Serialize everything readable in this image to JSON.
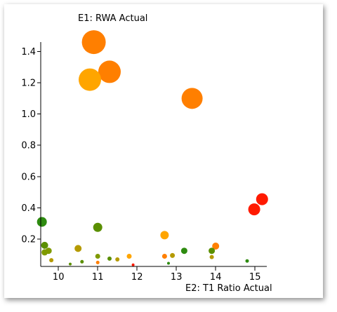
{
  "chart_data": {
    "type": "scatter",
    "title": "",
    "ylabel": "E1: RWA Actual",
    "xlabel": "E2: T1 Ratio Actual",
    "xlim": [
      9.55,
      15.3
    ],
    "ylim": [
      0.025,
      1.55
    ],
    "x_ticks": [
      10,
      11,
      12,
      13,
      14,
      15
    ],
    "y_ticks": [
      0.2,
      0.4,
      0.6,
      0.8,
      1.0,
      1.2,
      1.4
    ],
    "y_tick_labels": [
      "0.2",
      "0.4",
      "0.6",
      "0.8",
      "1.0",
      "1.2",
      "1.4"
    ],
    "grid": false,
    "legend": "none",
    "colors": {
      "dark_green": "#2e8b10",
      "olive": "#7f9a00",
      "gold": "#b59a00",
      "amber": "#ffa500",
      "orange": "#ff7f00",
      "red": "#ff1a00"
    },
    "points": [
      {
        "x": 10.9,
        "y": 1.46,
        "size": 17,
        "color": "#ff7f00"
      },
      {
        "x": 11.3,
        "y": 1.27,
        "size": 16,
        "color": "#ff7f00"
      },
      {
        "x": 10.8,
        "y": 1.22,
        "size": 16,
        "color": "#ffa500"
      },
      {
        "x": 13.4,
        "y": 1.1,
        "size": 15,
        "color": "#ff7f00"
      },
      {
        "x": 15.18,
        "y": 0.455,
        "size": 8.5,
        "color": "#ff1a00"
      },
      {
        "x": 14.98,
        "y": 0.39,
        "size": 8.5,
        "color": "#ff1a00"
      },
      {
        "x": 9.58,
        "y": 0.31,
        "size": 7,
        "color": "#2e8b10"
      },
      {
        "x": 11.0,
        "y": 0.275,
        "size": 6.5,
        "color": "#5a8f00"
      },
      {
        "x": 12.7,
        "y": 0.225,
        "size": 6,
        "color": "#ffa500"
      },
      {
        "x": 9.65,
        "y": 0.16,
        "size": 5,
        "color": "#5a8f00"
      },
      {
        "x": 10.5,
        "y": 0.14,
        "size": 5,
        "color": "#b59a00"
      },
      {
        "x": 9.75,
        "y": 0.125,
        "size": 4.5,
        "color": "#7f9a00"
      },
      {
        "x": 9.65,
        "y": 0.115,
        "size": 4.5,
        "color": "#7f9a00"
      },
      {
        "x": 13.2,
        "y": 0.125,
        "size": 4.5,
        "color": "#2e8b10"
      },
      {
        "x": 13.9,
        "y": 0.125,
        "size": 4.5,
        "color": "#5a8f00"
      },
      {
        "x": 14.0,
        "y": 0.155,
        "size": 5,
        "color": "#ff7f00"
      },
      {
        "x": 12.7,
        "y": 0.09,
        "size": 3.5,
        "color": "#ff7f00"
      },
      {
        "x": 12.9,
        "y": 0.095,
        "size": 3.5,
        "color": "#b59a00"
      },
      {
        "x": 11.0,
        "y": 0.09,
        "size": 3.5,
        "color": "#7f9a00"
      },
      {
        "x": 11.3,
        "y": 0.075,
        "size": 3,
        "color": "#5a8f00"
      },
      {
        "x": 11.5,
        "y": 0.07,
        "size": 3,
        "color": "#b59a00"
      },
      {
        "x": 11.8,
        "y": 0.09,
        "size": 3.5,
        "color": "#ffa500"
      },
      {
        "x": 13.9,
        "y": 0.085,
        "size": 3,
        "color": "#b59a00"
      },
      {
        "x": 9.82,
        "y": 0.065,
        "size": 3,
        "color": "#b59a00"
      },
      {
        "x": 10.6,
        "y": 0.055,
        "size": 2.5,
        "color": "#5a8f00"
      },
      {
        "x": 11.0,
        "y": 0.05,
        "size": 2.5,
        "color": "#ff7f00"
      },
      {
        "x": 10.3,
        "y": 0.04,
        "size": 2,
        "color": "#5a8f00"
      },
      {
        "x": 11.9,
        "y": 0.035,
        "size": 2,
        "color": "#ff1a00"
      },
      {
        "x": 12.8,
        "y": 0.045,
        "size": 2,
        "color": "#2e8b10"
      },
      {
        "x": 14.8,
        "y": 0.06,
        "size": 2.5,
        "color": "#2e8b10"
      }
    ]
  }
}
